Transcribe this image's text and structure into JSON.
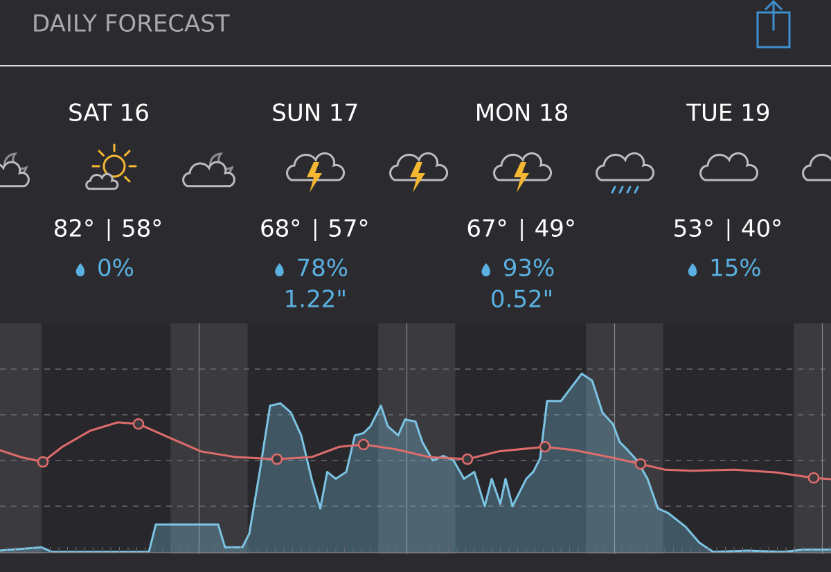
{
  "header": {
    "title": "DAILY FORECAST"
  },
  "days": [
    {
      "label": "SAT 16",
      "high": "82°",
      "low": "58°",
      "precip": "0%"
    },
    {
      "label": "SUN 17",
      "high": "68°",
      "low": "57°",
      "precip": "78%",
      "amount": "1.22\""
    },
    {
      "label": "MON 18",
      "high": "67°",
      "low": "49°",
      "precip": "93%",
      "amount": "0.52\""
    },
    {
      "label": "TUE 19",
      "high": "53°",
      "low": "40°",
      "precip": "15%"
    }
  ],
  "chart_data": {
    "type": "line",
    "xlim": [
      0,
      96
    ],
    "ylim": [
      0,
      100
    ],
    "xticks": [
      23,
      47,
      71,
      95
    ],
    "ygrid": [
      20,
      40,
      60,
      80
    ],
    "nights": [
      [
        -1,
        4.8
      ],
      [
        19.7,
        28.6
      ],
      [
        43.7,
        52.6
      ],
      [
        67.7,
        76.6
      ],
      [
        91.7,
        96
      ]
    ],
    "series": [
      {
        "color": "#7cc4e4",
        "fill": true,
        "x": [
          0,
          4.8,
          6,
          17.2,
          18,
          25.2,
          26,
          28,
          28.8,
          30,
          31.2,
          32.4,
          33.6,
          34.8,
          36,
          37,
          37.8,
          38.8,
          40,
          41,
          42,
          42.8,
          44,
          44.8,
          46,
          46.8,
          48,
          48.8,
          50,
          51.2,
          52.4,
          53.6,
          54.8,
          56,
          56.8,
          57.8,
          58.4,
          59.2,
          60.8,
          61.6,
          62.4,
          63.2,
          64.8,
          66,
          67.2,
          68.4,
          69.6,
          70.8,
          71.6,
          72.4,
          73.6,
          74.8,
          76,
          77.2,
          79.2,
          80.8,
          82.4,
          86.4,
          90.4,
          92.8,
          96
        ],
        "values": [
          0.6,
          2,
          0,
          0,
          12,
          12,
          2,
          2,
          8,
          35,
          64,
          65,
          61,
          51,
          32,
          19,
          35,
          32,
          35,
          51,
          52,
          55,
          64,
          55,
          51,
          58,
          57,
          48,
          40,
          42,
          40,
          32,
          35,
          20,
          32,
          21,
          32,
          20,
          32,
          35,
          41,
          66,
          66,
          72,
          78,
          75,
          61,
          56,
          48,
          45,
          40,
          32,
          19,
          17,
          11,
          4,
          0,
          0.6,
          0,
          1,
          1
        ]
      },
      {
        "color": "#e06c6c",
        "x": [
          0,
          2.4,
          4.96,
          7.2,
          10.4,
          13.6,
          16,
          19.2,
          23.2,
          27.2,
          32,
          36,
          39.2,
          42,
          45.6,
          49.6,
          54,
          57.6,
          62.96,
          66.4,
          70.4,
          74,
          76.8,
          80,
          84.8,
          89.6,
          94,
          96
        ],
        "values": [
          44.5,
          41.5,
          39.4,
          46,
          53,
          56.7,
          56,
          50.6,
          44,
          41.5,
          40.6,
          41.5,
          46,
          47,
          45,
          41.5,
          40.6,
          44,
          46,
          44.5,
          41.5,
          38.5,
          36,
          35.5,
          36,
          34.8,
          32.4,
          31.8
        ],
        "markers": {
          "x": [
            4.96,
            16,
            32,
            42,
            54,
            62.96,
            74,
            94
          ],
          "values": [
            39.4,
            56,
            40.6,
            47,
            40.6,
            46,
            38.5,
            32.4
          ]
        }
      }
    ]
  }
}
